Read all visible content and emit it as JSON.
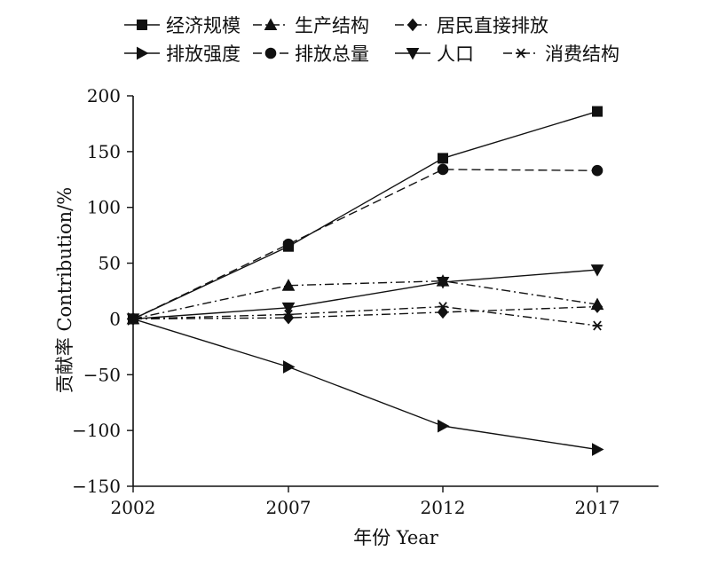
{
  "chart_data": {
    "type": "line",
    "categories": [
      "2002",
      "2007",
      "2012",
      "2017"
    ],
    "xlabel": "年份 Year",
    "ylabel": "贡献率 Contribution/%",
    "ylim": [
      -150,
      200
    ],
    "yticks": [
      "200",
      "150",
      "100",
      "50",
      "0",
      "-50",
      "-100",
      "-150"
    ],
    "grid": false,
    "legend_position": "top",
    "series": [
      {
        "name": "经济规模",
        "marker": "square",
        "dash": "solid",
        "values": [
          0,
          65,
          144,
          186
        ]
      },
      {
        "name": "生产结构",
        "marker": "triangle-up",
        "dash": "dashdot",
        "values": [
          0,
          30,
          34,
          13
        ]
      },
      {
        "name": "居民直接排放",
        "marker": "diamond",
        "dash": "dashdot",
        "values": [
          0,
          1,
          6,
          11
        ]
      },
      {
        "name": "排放强度",
        "marker": "triangle-right",
        "dash": "solid",
        "values": [
          0,
          -43,
          -96,
          -117
        ]
      },
      {
        "name": "排放总量",
        "marker": "circle",
        "dash": "dashed",
        "values": [
          0,
          67,
          134,
          133
        ]
      },
      {
        "name": "人口",
        "marker": "triangle-down",
        "dash": "solid",
        "values": [
          0,
          10,
          33,
          44
        ]
      },
      {
        "name": "消费结构",
        "marker": "star",
        "dash": "dashdot",
        "values": [
          0,
          4,
          11,
          -6
        ]
      }
    ]
  }
}
